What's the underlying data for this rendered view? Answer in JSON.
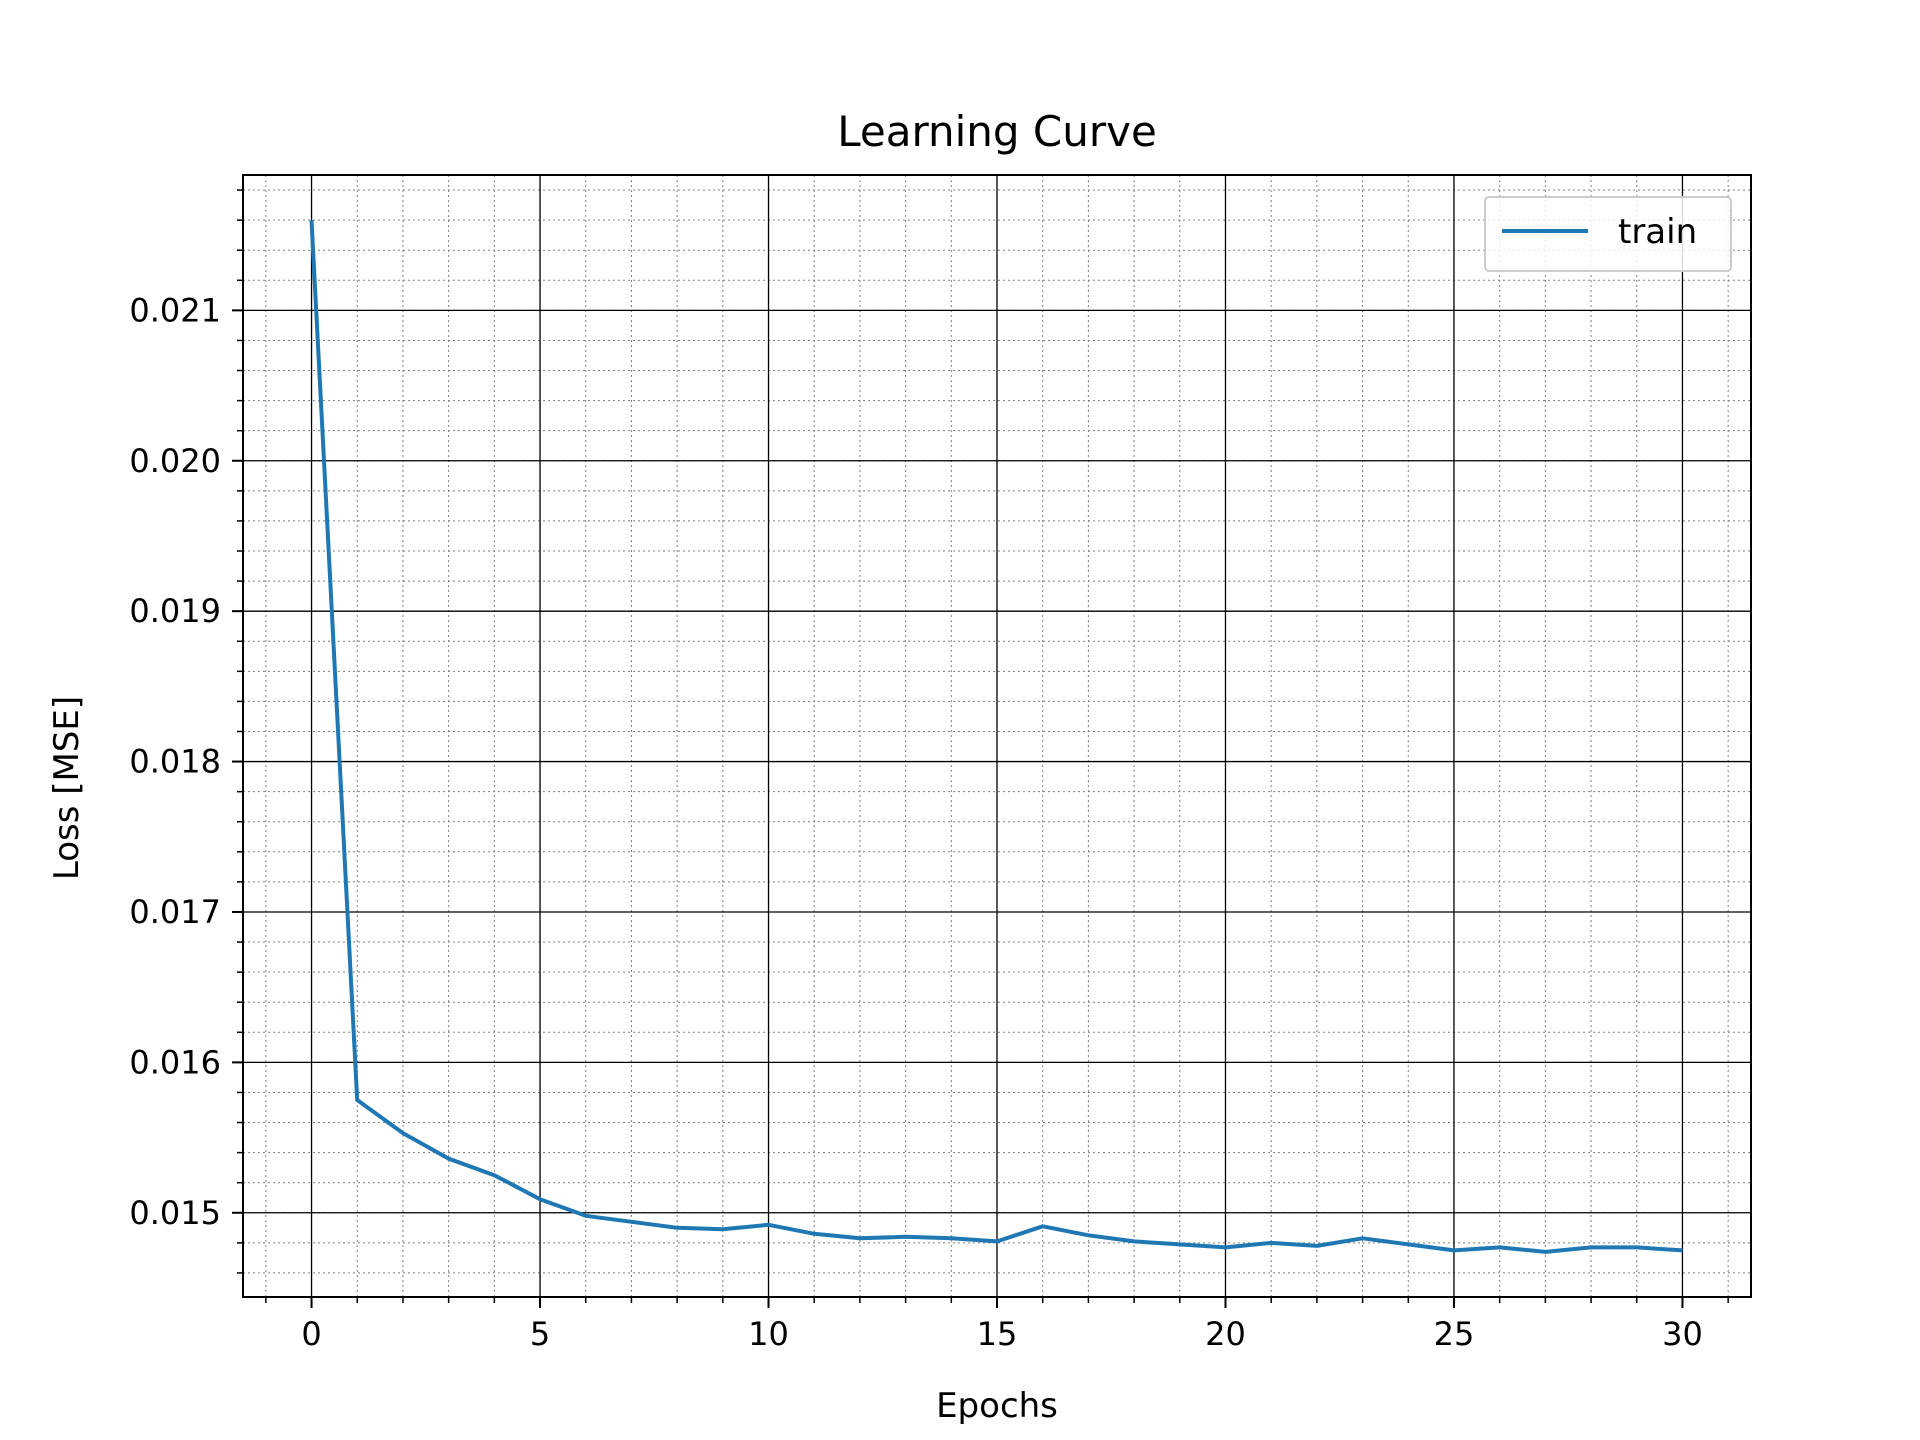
{
  "chart_data": {
    "type": "line",
    "title": "Learning Curve",
    "xlabel": "Epochs",
    "ylabel": "Loss [MSE]",
    "xlim": [
      -1.5,
      31.5
    ],
    "ylim": [
      0.01444,
      0.0219
    ],
    "x_ticks": [
      0,
      5,
      10,
      15,
      20,
      25,
      30
    ],
    "x_tick_labels": [
      "0",
      "5",
      "10",
      "15",
      "20",
      "25",
      "30"
    ],
    "y_ticks": [
      0.015,
      0.016,
      0.017,
      0.018,
      0.019,
      0.02,
      0.021
    ],
    "y_tick_labels": [
      "0.015",
      "0.016",
      "0.017",
      "0.018",
      "0.019",
      "0.020",
      "0.021"
    ],
    "x_minor_step": 1,
    "y_minor_step": 0.0002,
    "grid": {
      "major": true,
      "minor": true
    },
    "legend_position": "top-right",
    "series": [
      {
        "name": "train",
        "color": "#1f77b4",
        "x": [
          0,
          1,
          2,
          3,
          4,
          5,
          6,
          7,
          8,
          9,
          10,
          11,
          12,
          13,
          14,
          15,
          16,
          17,
          18,
          19,
          20,
          21,
          22,
          23,
          24,
          25,
          26,
          27,
          28,
          29,
          30
        ],
        "y": [
          0.0216,
          0.01575,
          0.01553,
          0.01536,
          0.01525,
          0.01509,
          0.01498,
          0.01494,
          0.0149,
          0.01489,
          0.01492,
          0.01486,
          0.01483,
          0.01484,
          0.01483,
          0.01481,
          0.01491,
          0.01485,
          0.01481,
          0.01479,
          0.01477,
          0.0148,
          0.01478,
          0.01483,
          0.01479,
          0.01475,
          0.01477,
          0.01474,
          0.01477,
          0.01477,
          0.01475
        ]
      }
    ]
  }
}
